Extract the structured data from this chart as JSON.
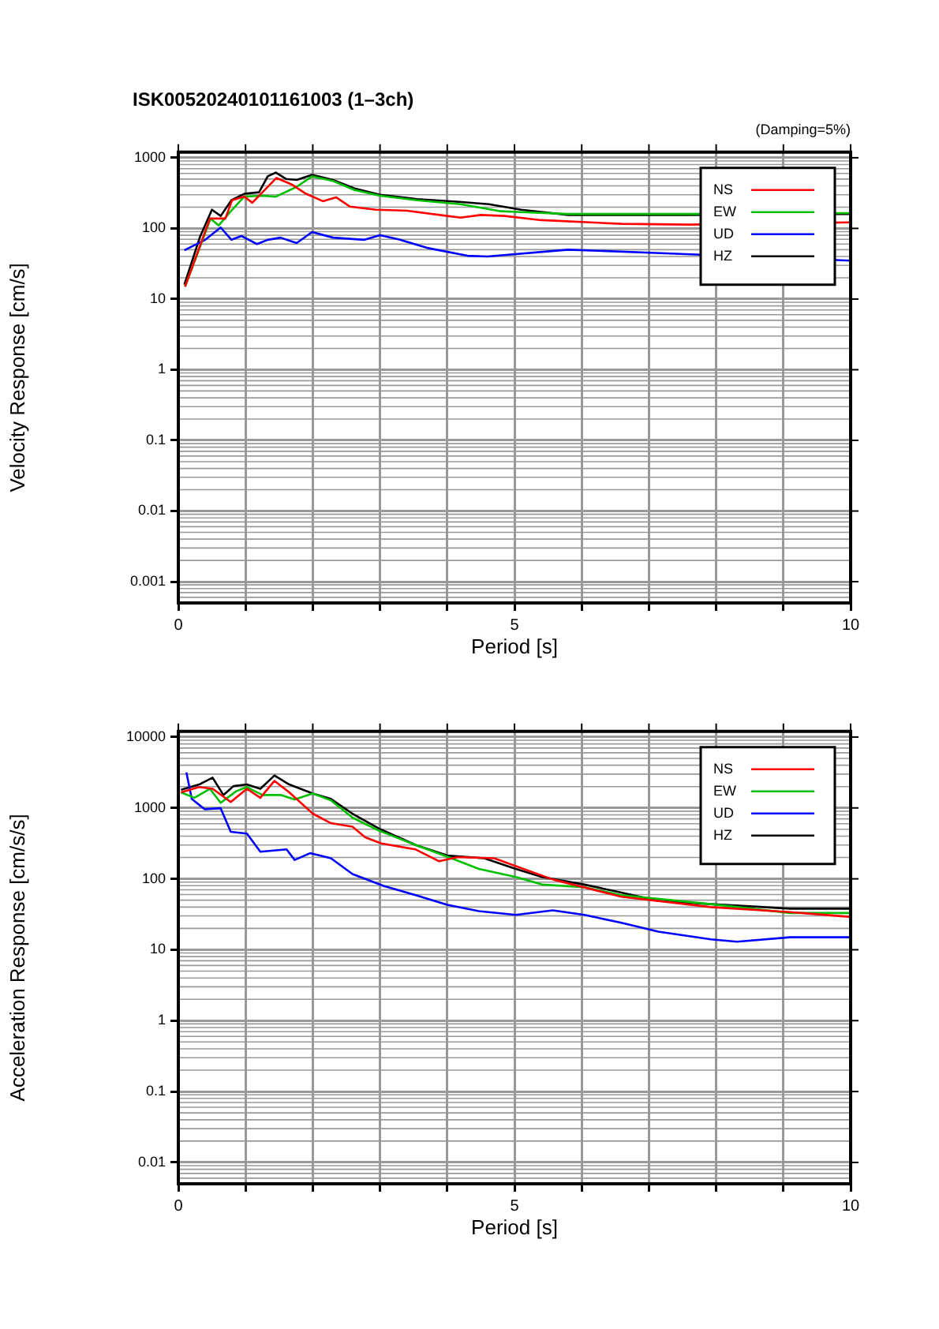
{
  "chart_data": [
    {
      "type": "line",
      "title": "ISK00520240101161003 (1–3ch)",
      "xlabel": "Period [s]",
      "ylabel": "Velocity Response [cm/s]",
      "annotations": [
        "(Damping=5%)"
      ],
      "log": "y",
      "grid": true,
      "legend": "top right",
      "marker": "none",
      "line_style": "solid",
      "xlim": [
        0,
        10
      ],
      "xticks": [
        0,
        {
          "value": 1,
          "label": null
        },
        {
          "value": 2,
          "label": null
        },
        {
          "value": 3,
          "label": null
        },
        {
          "value": 4,
          "label": null
        },
        5,
        {
          "value": 6,
          "label": null
        },
        {
          "value": 7,
          "label": null
        },
        {
          "value": 8,
          "label": null
        },
        {
          "value": 9,
          "label": null
        },
        10
      ],
      "ylim": [
        0.0005,
        1200
      ],
      "yticks": [
        0.001,
        0.01,
        0.1,
        1,
        10,
        100,
        1000
      ],
      "series": [
        {
          "name": "NS",
          "color": "#ff0000",
          "x": [
            0.1,
            0.47,
            0.7,
            0.8,
            0.98,
            1.1,
            1.46,
            1.68,
            1.9,
            2.15,
            2.35,
            2.55,
            2.94,
            3.4,
            4.0,
            4.2,
            4.5,
            4.85,
            5.4,
            6.6,
            7.6,
            10
          ],
          "values": [
            15,
            138,
            138,
            251,
            282,
            231,
            518,
            422,
            309,
            243,
            275,
            204,
            184,
            178,
            150,
            142,
            155,
            150,
            131,
            116,
            113,
            122
          ]
        },
        {
          "name": "EW",
          "color": "#00c000",
          "x": [
            0.1,
            0.48,
            0.6,
            0.79,
            0.98,
            1.25,
            1.45,
            1.76,
            1.99,
            2.3,
            2.62,
            3.0,
            3.55,
            4.2,
            4.8,
            5.1,
            5.8,
            7.0,
            7.6,
            10
          ],
          "values": [
            15,
            138,
            110,
            179,
            282,
            290,
            282,
            387,
            546,
            470,
            350,
            290,
            250,
            220,
            175,
            170,
            160,
            160,
            160,
            165
          ]
        },
        {
          "name": "UD",
          "color": "#0000ff",
          "x": [
            0.09,
            0.4,
            0.63,
            0.79,
            0.94,
            1.17,
            1.33,
            1.52,
            1.76,
            1.99,
            2.3,
            2.77,
            3.0,
            3.3,
            3.7,
            4.3,
            4.6,
            5.8,
            7.1,
            10
          ],
          "values": [
            49,
            69,
            103,
            69,
            78,
            60,
            69,
            74,
            62,
            89,
            74,
            69,
            80,
            69,
            53,
            41,
            40,
            50,
            45,
            35
          ]
        },
        {
          "name": "HZ",
          "color": "#000000",
          "x": [
            0.09,
            0.32,
            0.5,
            0.63,
            0.79,
            0.98,
            1.2,
            1.33,
            1.45,
            1.6,
            1.76,
            1.99,
            2.3,
            2.62,
            3.0,
            3.55,
            4.18,
            4.62,
            5.1,
            5.8,
            6.97,
            7.6,
            10
          ],
          "values": [
            16,
            75,
            184,
            150,
            251,
            309,
            325,
            546,
            617,
            502,
            485,
            575,
            485,
            368,
            299,
            260,
            238,
            220,
            184,
            155,
            155,
            155,
            160
          ]
        }
      ]
    },
    {
      "type": "line",
      "xlabel": "Period [s]",
      "ylabel": "Acceleration Response [cm/s/s]",
      "log": "y",
      "grid": true,
      "legend": "top right",
      "marker": "none",
      "line_style": "solid",
      "xlim": [
        0,
        10
      ],
      "xticks": [
        0,
        {
          "value": 1,
          "label": null
        },
        {
          "value": 2,
          "label": null
        },
        {
          "value": 3,
          "label": null
        },
        {
          "value": 4,
          "label": null
        },
        5,
        {
          "value": 6,
          "label": null
        },
        {
          "value": 7,
          "label": null
        },
        {
          "value": 8,
          "label": null
        },
        {
          "value": 9,
          "label": null
        },
        10
      ],
      "ylim": [
        0.005,
        12000
      ],
      "yticks": [
        0.01,
        0.1,
        1,
        10,
        100,
        1000,
        10000
      ],
      "series": [
        {
          "name": "NS",
          "color": "#ff0000",
          "x": [
            0.04,
            0.31,
            0.51,
            0.78,
            1.02,
            1.22,
            1.43,
            1.65,
            2.0,
            2.27,
            2.59,
            2.78,
            3.02,
            3.53,
            3.88,
            4.16,
            4.7,
            5.02,
            5.57,
            6.59,
            7.92,
            9.1,
            10
          ],
          "values": [
            1660,
            1970,
            1860,
            1210,
            1860,
            1390,
            2410,
            1660,
            830,
            610,
            545,
            385,
            315,
            260,
            177,
            203,
            195,
            151,
            98,
            56,
            40,
            34,
            29
          ]
        },
        {
          "name": "EW",
          "color": "#00c000",
          "x": [
            0.04,
            0.24,
            0.47,
            0.63,
            0.86,
            1.02,
            1.25,
            1.53,
            1.73,
            2.0,
            2.27,
            2.59,
            2.98,
            3.53,
            4.0,
            4.47,
            5.02,
            5.41,
            6.04,
            6.59,
            7.92,
            9.1,
            10
          ],
          "values": [
            1660,
            1390,
            1860,
            1180,
            1720,
            1970,
            1520,
            1520,
            1320,
            1600,
            1280,
            730,
            480,
            300,
            205,
            138,
            106,
            83,
            76,
            59,
            44,
            33,
            33
          ]
        },
        {
          "name": "UD",
          "color": "#0000ff",
          "x": [
            0.12,
            0.2,
            0.39,
            0.63,
            0.78,
            1.02,
            1.22,
            1.61,
            1.73,
            1.96,
            2.27,
            2.59,
            3.06,
            3.53,
            4.0,
            4.47,
            5.02,
            5.57,
            6.04,
            6.59,
            7.14,
            7.92,
            8.31,
            9.1,
            10
          ],
          "values": [
            3170,
            1340,
            960,
            990,
            460,
            435,
            241,
            260,
            185,
            230,
            195,
            117,
            79,
            59,
            43,
            35,
            31,
            36,
            31,
            24,
            18,
            14,
            13,
            15,
            15
          ]
        },
        {
          "name": "HZ",
          "color": "#000000",
          "x": [
            0.04,
            0.31,
            0.51,
            0.67,
            0.82,
            1.02,
            1.22,
            1.43,
            1.65,
            2.0,
            2.27,
            2.59,
            2.98,
            3.53,
            4.0,
            4.55,
            5.02,
            5.41,
            6.04,
            6.59,
            7.14,
            7.92,
            8.7,
            9.1,
            10
          ],
          "values": [
            1800,
            2140,
            2670,
            1520,
            2030,
            2140,
            1860,
            2870,
            2140,
            1600,
            1340,
            830,
            515,
            300,
            213,
            195,
            138,
            106,
            83,
            64,
            49,
            44,
            40,
            38,
            38
          ]
        }
      ]
    }
  ]
}
